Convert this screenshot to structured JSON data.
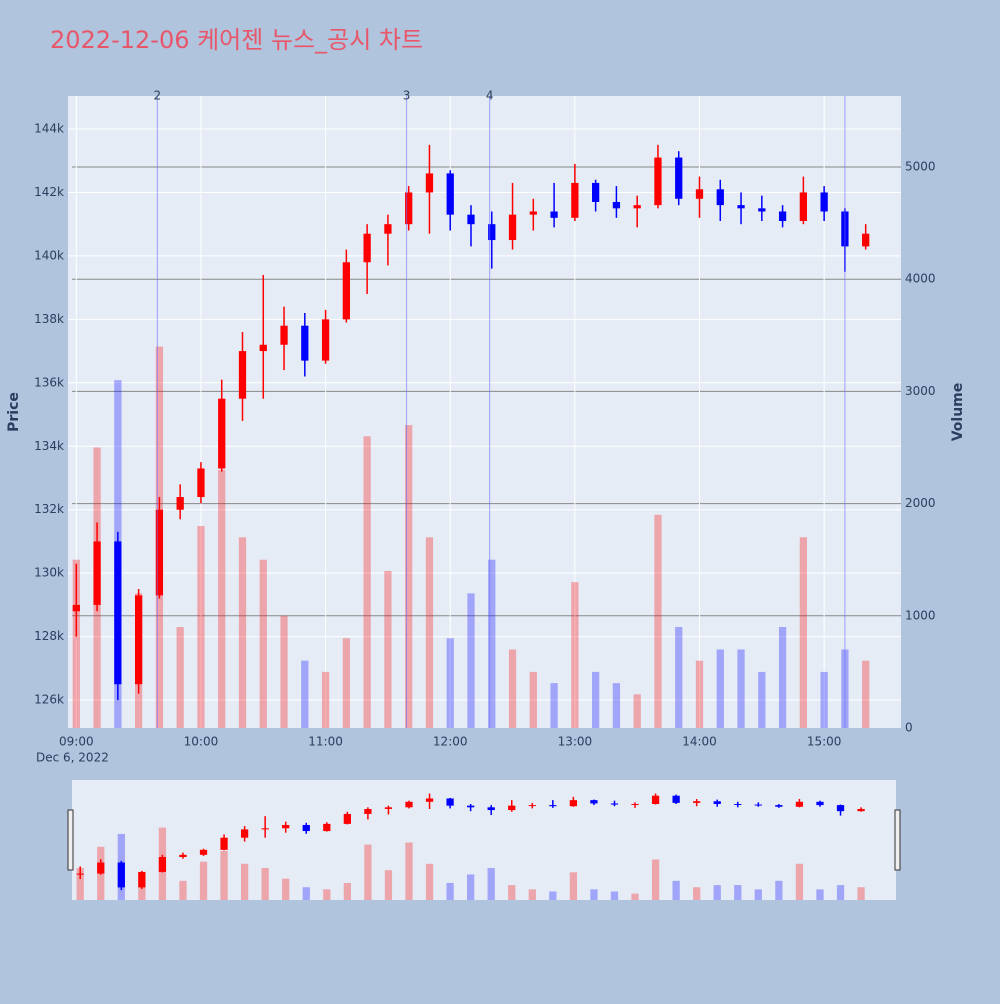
{
  "chart_data": {
    "type": "candlestick",
    "title": "2022-12-06 케어젠 뉴스_공시 차트",
    "y_title": "Price",
    "y2_title": "Volume",
    "x": [
      "2022-12-06 09:00",
      "2022-12-06 09:10",
      "2022-12-06 09:20",
      "2022-12-06 09:30",
      "2022-12-06 09:40",
      "2022-12-06 09:50",
      "2022-12-06 10:00",
      "2022-12-06 10:10",
      "2022-12-06 10:20",
      "2022-12-06 10:30",
      "2022-12-06 10:40",
      "2022-12-06 10:50",
      "2022-12-06 11:00",
      "2022-12-06 11:10",
      "2022-12-06 11:20",
      "2022-12-06 11:30",
      "2022-12-06 11:40",
      "2022-12-06 11:50",
      "2022-12-06 12:00",
      "2022-12-06 12:10",
      "2022-12-06 12:20",
      "2022-12-06 12:30",
      "2022-12-06 12:40",
      "2022-12-06 12:50",
      "2022-12-06 13:00",
      "2022-12-06 13:10",
      "2022-12-06 13:20",
      "2022-12-06 13:30",
      "2022-12-06 13:40",
      "2022-12-06 13:50",
      "2022-12-06 14:00",
      "2022-12-06 14:10",
      "2022-12-06 14:20",
      "2022-12-06 14:30",
      "2022-12-06 14:40",
      "2022-12-06 14:50",
      "2022-12-06 15:00",
      "2022-12-06 15:10",
      "2022-12-06 15:20"
    ],
    "open": [
      128800,
      129000,
      131000,
      126500,
      129300,
      132000,
      132400,
      133300,
      135500,
      137000,
      137200,
      137800,
      136700,
      138000,
      139800,
      140700,
      141000,
      142000,
      142600,
      141300,
      141000,
      140500,
      141300,
      141400,
      141200,
      142300,
      141700,
      141500,
      141600,
      143100,
      141800,
      142100,
      141600,
      141500,
      141400,
      141100,
      142000,
      141400,
      140300
    ],
    "high": [
      130300,
      131600,
      131300,
      129500,
      132400,
      132800,
      133500,
      136100,
      137600,
      139400,
      138400,
      138200,
      138300,
      140200,
      141000,
      141300,
      142200,
      143500,
      142700,
      141600,
      141400,
      142300,
      141800,
      142300,
      142900,
      142400,
      142200,
      141900,
      143500,
      143300,
      142500,
      142400,
      142000,
      141900,
      141600,
      142500,
      142200,
      141500,
      141000
    ],
    "low": [
      128000,
      128800,
      126000,
      126200,
      129200,
      131700,
      132200,
      133200,
      134800,
      135500,
      136400,
      136200,
      136600,
      137900,
      138800,
      139700,
      140800,
      140700,
      140800,
      140300,
      139600,
      140200,
      140800,
      140900,
      141100,
      141400,
      141200,
      140900,
      141500,
      141600,
      141200,
      141100,
      141000,
      141100,
      140900,
      141000,
      141100,
      139500,
      140200
    ],
    "close": [
      129000,
      131000,
      126500,
      129300,
      132000,
      132400,
      133300,
      135500,
      137000,
      137200,
      137800,
      136700,
      138000,
      139800,
      140700,
      141000,
      142000,
      142600,
      141300,
      141000,
      140500,
      141300,
      141400,
      141200,
      142300,
      141700,
      141500,
      141600,
      143100,
      141800,
      142100,
      141600,
      141500,
      141400,
      141100,
      142000,
      141400,
      140300,
      140700
    ],
    "volume": [
      1500,
      2500,
      3100,
      1200,
      3400,
      900,
      1800,
      2300,
      1700,
      1500,
      1000,
      600,
      500,
      800,
      2600,
      1400,
      2700,
      1700,
      800,
      1200,
      1500,
      700,
      500,
      400,
      1300,
      500,
      400,
      300,
      1900,
      900,
      600,
      700,
      700,
      500,
      900,
      1700,
      500,
      700,
      600
    ],
    "increasing_color": "#ff0000",
    "decreasing_color": "#0000ff",
    "xlim": [
      "2022-12-06 08:56",
      "2022-12-06 15:37"
    ],
    "xticks": [
      {
        "value": "2022-12-06 09:00",
        "label": "09:00"
      },
      {
        "value": "2022-12-06 10:00",
        "label": "10:00"
      },
      {
        "value": "2022-12-06 11:00",
        "label": "11:00"
      },
      {
        "value": "2022-12-06 12:00",
        "label": "12:00"
      },
      {
        "value": "2022-12-06 13:00",
        "label": "13:00"
      },
      {
        "value": "2022-12-06 14:00",
        "label": "14:00"
      },
      {
        "value": "2022-12-06 15:00",
        "label": "15:00"
      }
    ],
    "x_date_label": "Dec 6, 2022",
    "ylim": [
      125120,
      145040
    ],
    "yticks": [
      {
        "value": 126000,
        "label": "126k"
      },
      {
        "value": 128000,
        "label": "128k"
      },
      {
        "value": 130000,
        "label": "130k"
      },
      {
        "value": 132000,
        "label": "132k"
      },
      {
        "value": 134000,
        "label": "134k"
      },
      {
        "value": 136000,
        "label": "136k"
      },
      {
        "value": 138000,
        "label": "138k"
      },
      {
        "value": 140000,
        "label": "140k"
      },
      {
        "value": 142000,
        "label": "142k"
      },
      {
        "value": 144000,
        "label": "144k"
      }
    ],
    "y2lim": [
      0,
      5633
    ],
    "y2ticks": [
      0,
      1000,
      2000,
      3000,
      4000,
      5000
    ],
    "annotations": [
      {
        "x": "2022-12-06 09:39",
        "label": "2"
      },
      {
        "x": "2022-12-06 11:39",
        "label": "3"
      },
      {
        "x": "2022-12-06 12:19",
        "label": "4"
      },
      {
        "x": "2022-12-06 15:10"
      }
    ]
  }
}
